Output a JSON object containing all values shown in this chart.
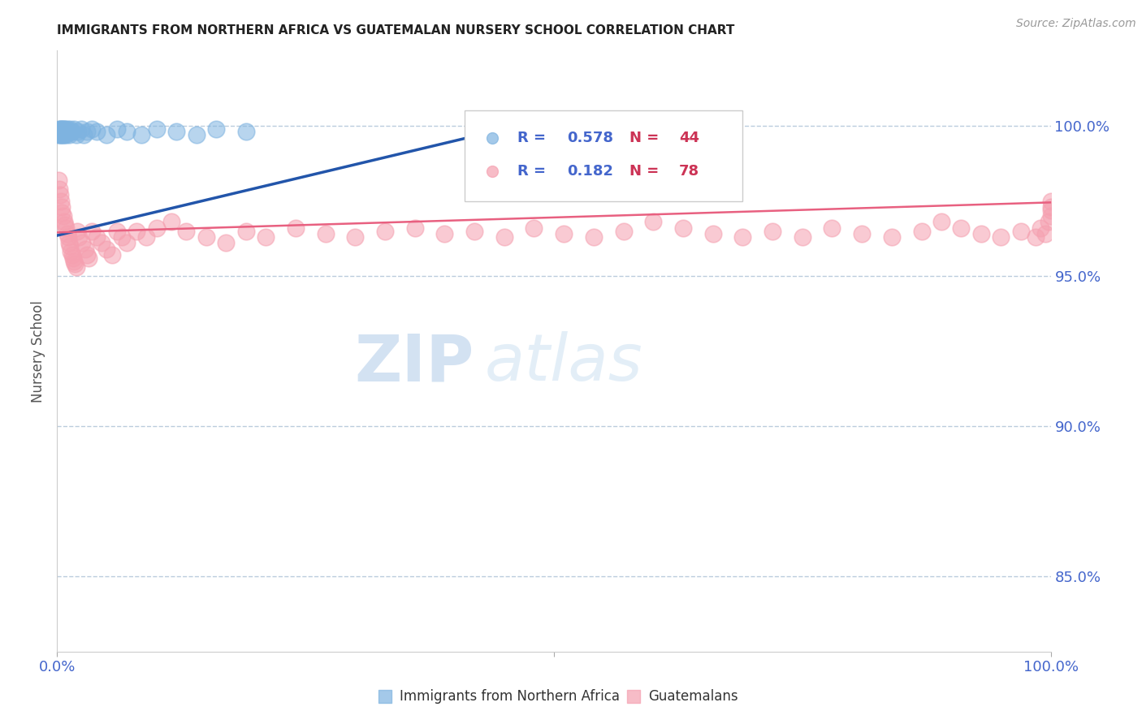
{
  "title": "IMMIGRANTS FROM NORTHERN AFRICA VS GUATEMALAN NURSERY SCHOOL CORRELATION CHART",
  "source": "Source: ZipAtlas.com",
  "ylabel": "Nursery School",
  "ytick_labels": [
    "85.0%",
    "90.0%",
    "95.0%",
    "100.0%"
  ],
  "ytick_values": [
    0.85,
    0.9,
    0.95,
    1.0
  ],
  "xlim": [
    0.0,
    1.0
  ],
  "ylim": [
    0.825,
    1.025
  ],
  "blue_color": "#7EB3E0",
  "pink_color": "#F5A0B0",
  "blue_line_color": "#2255AA",
  "pink_line_color": "#E86080",
  "legend_blue_r": "0.578",
  "legend_blue_n": "44",
  "legend_pink_r": "0.182",
  "legend_pink_n": "78",
  "blue_scatter_x": [
    0.001,
    0.002,
    0.002,
    0.003,
    0.003,
    0.003,
    0.004,
    0.004,
    0.004,
    0.005,
    0.005,
    0.005,
    0.006,
    0.006,
    0.007,
    0.007,
    0.008,
    0.008,
    0.009,
    0.01,
    0.01,
    0.011,
    0.012,
    0.013,
    0.014,
    0.015,
    0.017,
    0.019,
    0.021,
    0.024,
    0.027,
    0.03,
    0.035,
    0.04,
    0.05,
    0.06,
    0.07,
    0.085,
    0.1,
    0.12,
    0.14,
    0.16,
    0.19,
    0.47
  ],
  "blue_scatter_y": [
    0.997,
    0.998,
    0.999,
    0.997,
    0.998,
    0.999,
    0.997,
    0.998,
    0.999,
    0.997,
    0.998,
    0.999,
    0.997,
    0.999,
    0.997,
    0.999,
    0.998,
    0.999,
    0.997,
    0.998,
    0.999,
    0.998,
    0.997,
    0.999,
    0.998,
    0.998,
    0.999,
    0.997,
    0.998,
    0.999,
    0.997,
    0.998,
    0.999,
    0.998,
    0.997,
    0.999,
    0.998,
    0.997,
    0.999,
    0.998,
    0.997,
    0.999,
    0.998,
    1.0
  ],
  "pink_scatter_x": [
    0.001,
    0.002,
    0.003,
    0.004,
    0.005,
    0.005,
    0.006,
    0.007,
    0.008,
    0.009,
    0.01,
    0.011,
    0.012,
    0.013,
    0.014,
    0.015,
    0.016,
    0.017,
    0.018,
    0.019,
    0.02,
    0.022,
    0.025,
    0.028,
    0.03,
    0.032,
    0.035,
    0.04,
    0.045,
    0.05,
    0.055,
    0.06,
    0.065,
    0.07,
    0.08,
    0.09,
    0.1,
    0.115,
    0.13,
    0.15,
    0.17,
    0.19,
    0.21,
    0.24,
    0.27,
    0.3,
    0.33,
    0.36,
    0.39,
    0.42,
    0.45,
    0.48,
    0.51,
    0.54,
    0.57,
    0.6,
    0.63,
    0.66,
    0.69,
    0.72,
    0.75,
    0.78,
    0.81,
    0.84,
    0.87,
    0.89,
    0.91,
    0.93,
    0.95,
    0.97,
    0.985,
    0.99,
    0.995,
    0.998,
    1.0,
    1.0,
    1.0,
    1.0
  ],
  "pink_scatter_y": [
    0.982,
    0.979,
    0.977,
    0.975,
    0.973,
    0.971,
    0.97,
    0.968,
    0.967,
    0.966,
    0.964,
    0.963,
    0.961,
    0.96,
    0.958,
    0.957,
    0.956,
    0.955,
    0.954,
    0.953,
    0.965,
    0.963,
    0.961,
    0.959,
    0.957,
    0.956,
    0.965,
    0.963,
    0.961,
    0.959,
    0.957,
    0.965,
    0.963,
    0.961,
    0.965,
    0.963,
    0.966,
    0.968,
    0.965,
    0.963,
    0.961,
    0.965,
    0.963,
    0.966,
    0.964,
    0.963,
    0.965,
    0.966,
    0.964,
    0.965,
    0.963,
    0.966,
    0.964,
    0.963,
    0.965,
    0.968,
    0.966,
    0.964,
    0.963,
    0.965,
    0.963,
    0.966,
    0.964,
    0.963,
    0.965,
    0.968,
    0.966,
    0.964,
    0.963,
    0.965,
    0.963,
    0.966,
    0.964,
    0.968,
    0.973,
    0.975,
    0.97,
    0.972
  ],
  "blue_trend_x": [
    0.0,
    0.47
  ],
  "blue_trend_y": [
    0.9635,
    1.0005
  ],
  "pink_trend_x": [
    0.0,
    1.0
  ],
  "pink_trend_y": [
    0.9645,
    0.9745
  ],
  "watermark_zip": "ZIP",
  "watermark_atlas": "atlas",
  "title_fontsize": 11,
  "axis_label_color": "#555555",
  "tick_color": "#4466CC",
  "grid_color": "#BBCCDD",
  "legend_r_color": "#4466CC",
  "legend_n_color": "#CC3355"
}
